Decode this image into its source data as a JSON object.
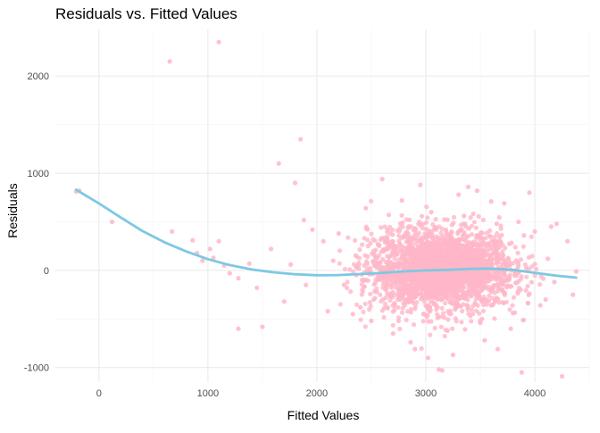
{
  "chart_data": {
    "type": "scatter",
    "title": "Residuals vs. Fitted Values",
    "xlabel": "Fitted Values",
    "ylabel": "Residuals",
    "xlim": [
      -400,
      4500
    ],
    "ylim": [
      -1150,
      2480
    ],
    "x_ticks": [
      0,
      1000,
      2000,
      3000,
      4000
    ],
    "y_ticks": [
      -1000,
      0,
      1000,
      2000
    ],
    "grid": true,
    "point_color": "#FFB6C8",
    "smooth_color": "#7EC8E3",
    "points": [
      [
        -210,
        810
      ],
      [
        -180,
        820
      ],
      [
        120,
        500
      ],
      [
        650,
        2150
      ],
      [
        1100,
        2350
      ],
      [
        670,
        400
      ],
      [
        860,
        310
      ],
      [
        900,
        180
      ],
      [
        950,
        100
      ],
      [
        1020,
        220
      ],
      [
        1050,
        130
      ],
      [
        1100,
        300
      ],
      [
        1150,
        50
      ],
      [
        1200,
        -30
      ],
      [
        1280,
        -80
      ],
      [
        1280,
        -600
      ],
      [
        1500,
        -580
      ],
      [
        1650,
        1100
      ],
      [
        1800,
        900
      ],
      [
        1850,
        1350
      ],
      [
        1880,
        520
      ],
      [
        1960,
        420
      ],
      [
        2060,
        300
      ],
      [
        2150,
        100
      ],
      [
        2250,
        -150
      ],
      [
        2330,
        -450
      ],
      [
        2400,
        -380
      ],
      [
        2500,
        -520
      ],
      [
        2600,
        940
      ],
      [
        2700,
        -650
      ],
      [
        2780,
        720
      ],
      [
        2860,
        -740
      ],
      [
        2900,
        -810
      ],
      [
        2950,
        880
      ],
      [
        3020,
        -900
      ],
      [
        3120,
        -1020
      ],
      [
        3150,
        -1030
      ],
      [
        3250,
        -870
      ],
      [
        3300,
        780
      ],
      [
        3390,
        860
      ],
      [
        3470,
        820
      ],
      [
        3540,
        -720
      ],
      [
        3600,
        710
      ],
      [
        3660,
        -810
      ],
      [
        3720,
        690
      ],
      [
        3780,
        -600
      ],
      [
        3850,
        500
      ],
      [
        3880,
        -1050
      ],
      [
        3950,
        800
      ],
      [
        4000,
        400
      ],
      [
        4100,
        -300
      ],
      [
        4150,
        450
      ],
      [
        4200,
        480
      ],
      [
        4250,
        -1090
      ],
      [
        4300,
        300
      ],
      [
        4350,
        -250
      ],
      [
        4380,
        -10
      ],
      [
        1580,
        220
      ],
      [
        1450,
        -180
      ],
      [
        1380,
        70
      ],
      [
        1700,
        -320
      ],
      [
        1760,
        60
      ],
      [
        1900,
        -150
      ],
      [
        2100,
        -420
      ],
      [
        2200,
        380
      ],
      [
        2450,
        640
      ],
      [
        2550,
        -220
      ],
      [
        2650,
        420
      ],
      [
        2750,
        -520
      ],
      [
        2850,
        520
      ],
      [
        3050,
        600
      ],
      [
        3200,
        -620
      ],
      [
        3350,
        560
      ],
      [
        3500,
        -540
      ],
      [
        3650,
        480
      ],
      [
        3800,
        -440
      ],
      [
        3900,
        360
      ],
      [
        4050,
        -360
      ],
      [
        4120,
        120
      ],
      [
        4180,
        -120
      ]
    ],
    "smooth_line": [
      [
        -210,
        830
      ],
      [
        0,
        690
      ],
      [
        200,
        545
      ],
      [
        400,
        405
      ],
      [
        600,
        290
      ],
      [
        800,
        195
      ],
      [
        1000,
        115
      ],
      [
        1200,
        55
      ],
      [
        1400,
        10
      ],
      [
        1600,
        -20
      ],
      [
        1800,
        -40
      ],
      [
        2000,
        -50
      ],
      [
        2200,
        -48
      ],
      [
        2400,
        -38
      ],
      [
        2600,
        -25
      ],
      [
        2800,
        -10
      ],
      [
        3000,
        0
      ],
      [
        3200,
        5
      ],
      [
        3400,
        15
      ],
      [
        3600,
        18
      ],
      [
        3800,
        5
      ],
      [
        4000,
        -25
      ],
      [
        4200,
        -55
      ],
      [
        4380,
        -75
      ]
    ],
    "dense_cluster": {
      "x_center": 3150,
      "x_sd": 330,
      "y_sd": 200,
      "x_min": 2200,
      "x_max": 4100,
      "count": 2600
    }
  }
}
